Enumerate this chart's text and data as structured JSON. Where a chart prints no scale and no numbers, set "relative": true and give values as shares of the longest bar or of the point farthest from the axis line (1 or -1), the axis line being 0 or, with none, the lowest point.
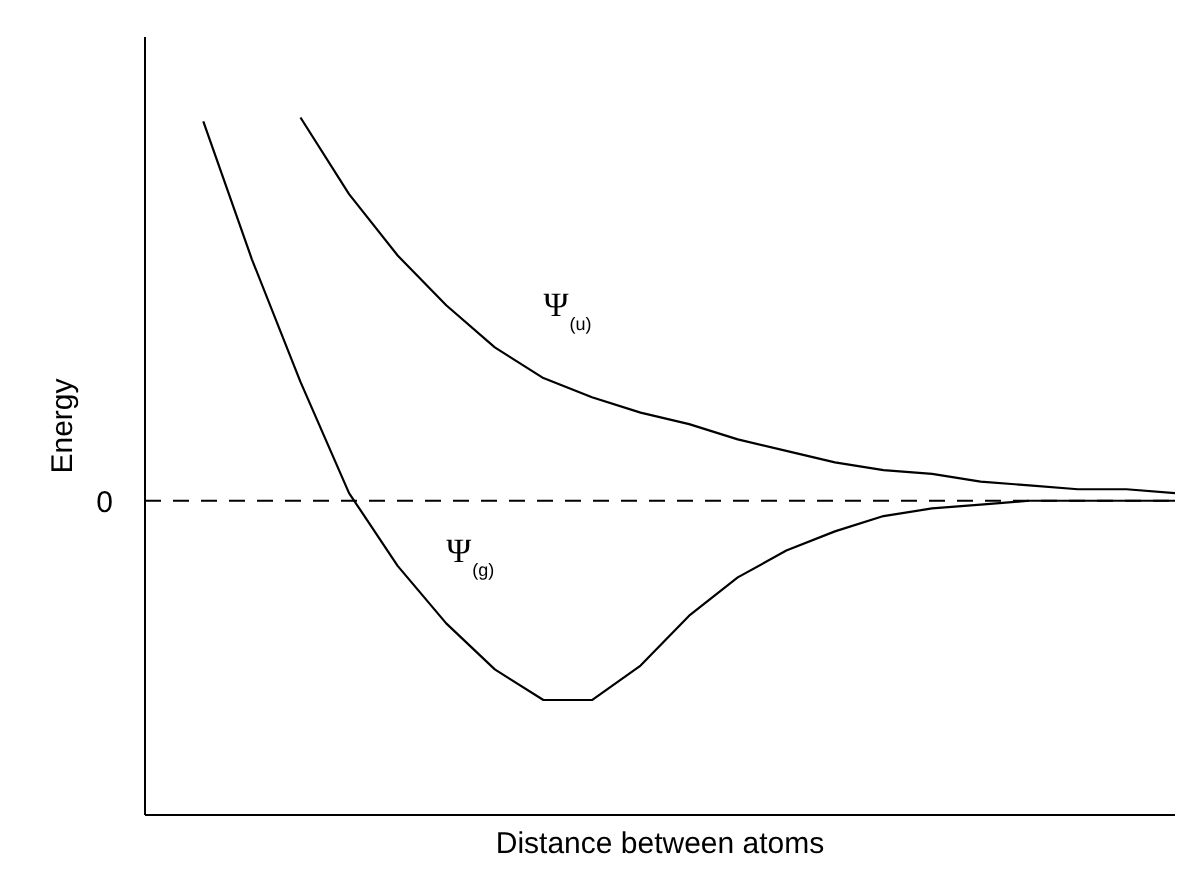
{
  "chart_data": {
    "type": "line",
    "relative": true,
    "xlabel": "Distance between atoms",
    "ylabel": "Energy",
    "categories": [
      null,
      null,
      null,
      null,
      null,
      null,
      null,
      null,
      null,
      null,
      null,
      null,
      null,
      null,
      null,
      null,
      null,
      null,
      null,
      null,
      null
    ],
    "series": [
      {
        "name": "Ψ$_{(u)}$",
        "color": "#000000",
        "values": [
          null,
          null,
          1.0,
          0.8,
          0.64,
          0.51,
          0.4,
          0.32,
          0.27,
          0.23,
          0.2,
          0.16,
          0.13,
          0.1,
          0.08,
          0.07,
          0.05,
          0.04,
          0.03,
          0.03,
          0.02
        ]
      },
      {
        "name": "Ψ$_{(g)}$",
        "color": "#000000",
        "values": [
          0.99,
          0.63,
          0.31,
          0.02,
          -0.17,
          -0.32,
          -0.44,
          -0.52,
          -0.52,
          -0.43,
          -0.3,
          -0.2,
          -0.13,
          -0.08,
          -0.04,
          -0.02,
          -0.01,
          0,
          0,
          0,
          0
        ]
      }
    ],
    "ref_lines": [
      {
        "axis": "y",
        "value": 0,
        "label": "0",
        "line_style": "dashed",
        "color": "#000000"
      }
    ],
    "grid": false,
    "marker": "none",
    "line_style": "solid",
    "tick_labels": "y"
  }
}
